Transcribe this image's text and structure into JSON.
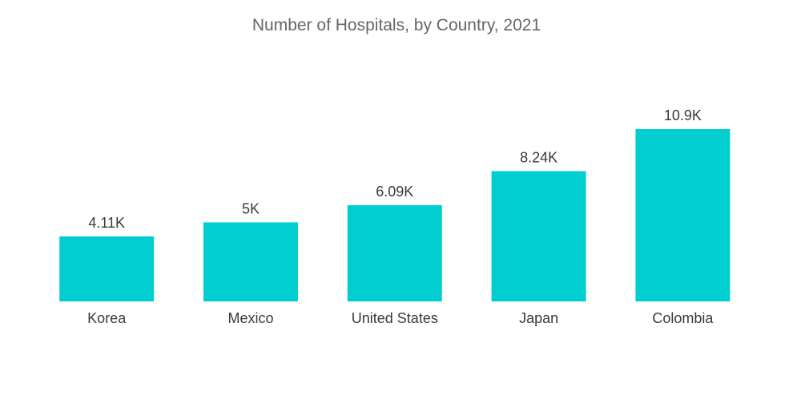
{
  "chart_data": {
    "type": "bar",
    "title": "Number of Hospitals, by Country, 2021",
    "categories": [
      "Korea",
      "Mexico",
      "United States",
      "Japan",
      "Colombia"
    ],
    "values": [
      4.11,
      5.0,
      6.09,
      8.24,
      10.9
    ],
    "value_labels": [
      "4.11K",
      "5K",
      "6.09K",
      "8.24K",
      "10.9K"
    ],
    "unit": "thousand",
    "xlabel": "",
    "ylabel": "",
    "ylim": [
      0,
      10.9
    ],
    "grid": false,
    "legend": "none",
    "bar_color": "#00ced1"
  }
}
